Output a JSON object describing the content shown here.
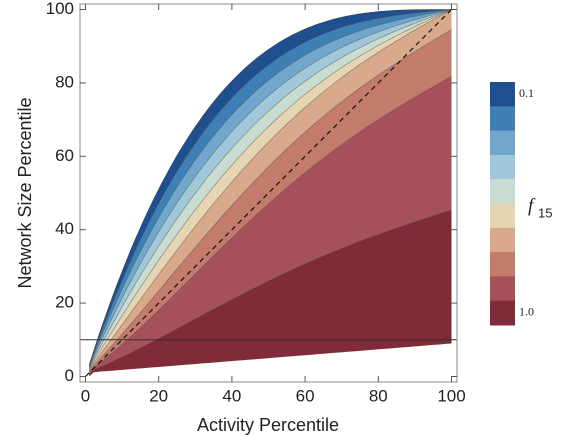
{
  "chart_data": {
    "type": "contour",
    "x_label": "Activity Percentile",
    "y_label": "Network Size Percentile",
    "xlim": [
      -1.5,
      101.5
    ],
    "ylim": [
      -1.5,
      101.5
    ],
    "xticks": [
      0,
      20,
      40,
      60,
      80,
      100
    ],
    "yticks": [
      0,
      20,
      40,
      60,
      80,
      100
    ],
    "reference_y": 10,
    "colorbar": {
      "label": {
        "main": "f",
        "sub": "15"
      },
      "levels": [
        0.1,
        0.2,
        0.3,
        0.4,
        0.5,
        0.6,
        0.7,
        0.8,
        0.9,
        1.0
      ],
      "colors": [
        "#1f4f8e",
        "#3e7fb5",
        "#72a7cd",
        "#a0c8d9",
        "#c8dcd2",
        "#e6d5b2",
        "#d8aa8b",
        "#c37b6b",
        "#a5505a",
        "#7f2b38"
      ],
      "ticks": [
        0.1,
        {
          "value": 1,
          "label": "1.0"
        }
      ]
    }
  }
}
